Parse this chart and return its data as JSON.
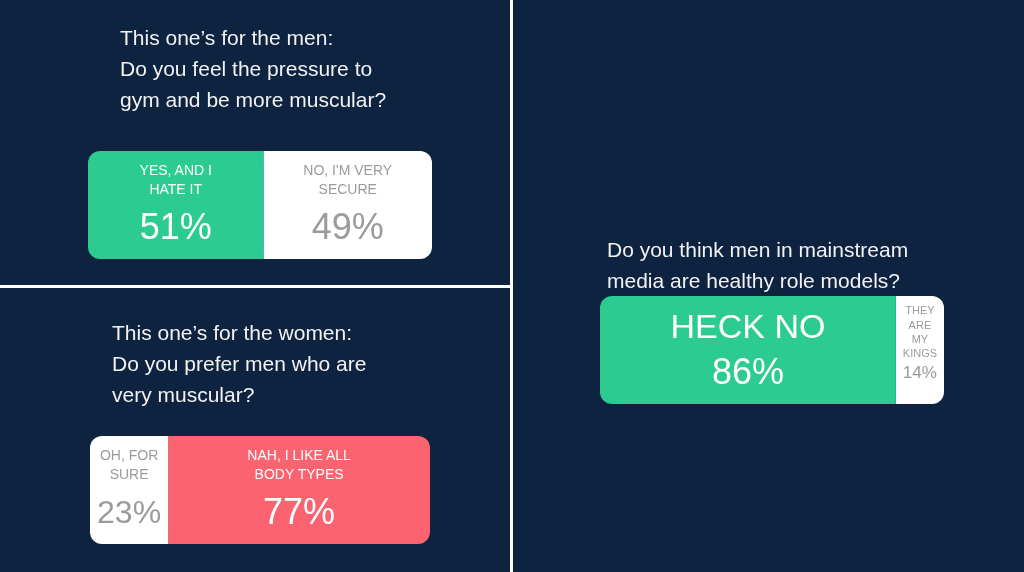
{
  "chart_data": [
    {
      "type": "bar",
      "title": "This one’s for the men:\nDo you feel the pressure to\ngym and be more muscular?",
      "categories": [
        null
      ],
      "orientation": "horizontal",
      "stacked": true,
      "xlim": [
        0,
        100
      ],
      "tick_labels": false,
      "legend": false,
      "series": [
        {
          "name": "YES, AND I HATE IT",
          "color": "#2bcb92",
          "values": [
            51
          ],
          "value_labels": [
            "51%"
          ]
        },
        {
          "name": "NO, I'M VERY SECURE",
          "color": "#ffffff",
          "values": [
            49
          ],
          "value_labels": [
            "49%"
          ]
        }
      ]
    },
    {
      "type": "bar",
      "title": "This one’s for the women:\nDo you prefer men who are\nvery muscular?",
      "categories": [
        null
      ],
      "orientation": "horizontal",
      "stacked": true,
      "xlim": [
        0,
        100
      ],
      "tick_labels": false,
      "legend": false,
      "series": [
        {
          "name": "OH, FOR SURE",
          "color": "#ffffff",
          "values": [
            23
          ],
          "value_labels": [
            "23%"
          ]
        },
        {
          "name": "NAH, I LIKE ALL BODY TYPES",
          "color": "#fc6370",
          "values": [
            77
          ],
          "value_labels": [
            "77%"
          ]
        }
      ]
    },
    {
      "type": "bar",
      "title": "Do you think men in mainstream\nmedia are healthy role models?",
      "categories": [
        null
      ],
      "orientation": "horizontal",
      "stacked": true,
      "xlim": [
        0,
        100
      ],
      "tick_labels": false,
      "legend": false,
      "series": [
        {
          "name": "HECK NO",
          "color": "#2bcb92",
          "values": [
            86
          ],
          "value_labels": [
            "86%"
          ]
        },
        {
          "name": "THEY ARE MY KINGS",
          "color": "#ffffff",
          "values": [
            14
          ],
          "value_labels": [
            "14%"
          ]
        }
      ]
    }
  ]
}
